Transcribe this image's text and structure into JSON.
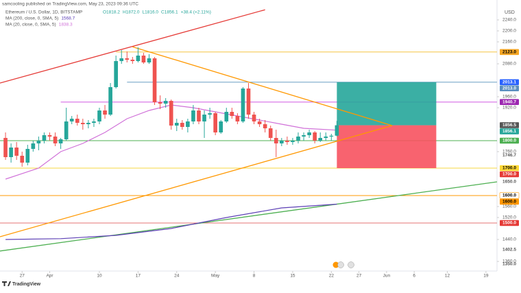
{
  "header": {
    "publisher": "samcooling published on TradingView.com, May 23, 2023 09:36 UTC",
    "logo": "TradingView",
    "currency": "USD"
  },
  "chart_data": {
    "type": "candlestick",
    "title": "Ethereum / U.S. Dollar, 1D, BITSTAMP",
    "ohlc_labels": [
      "O1818.2",
      "H1872.0",
      "L1816.0",
      "C1856.1",
      "+38.4 (+2.11%)"
    ],
    "up_color": "#26a69a",
    "down_color": "#ef5350",
    "x": [
      "2023-03-24",
      "2023-03-25",
      "2023-03-26",
      "2023-03-27",
      "2023-03-28",
      "2023-03-29",
      "2023-03-30",
      "2023-03-31",
      "2023-04-01",
      "2023-04-02",
      "2023-04-03",
      "2023-04-04",
      "2023-04-05",
      "2023-04-06",
      "2023-04-07",
      "2023-04-08",
      "2023-04-09",
      "2023-04-10",
      "2023-04-11",
      "2023-04-12",
      "2023-04-13",
      "2023-04-14",
      "2023-04-15",
      "2023-04-16",
      "2023-04-17",
      "2023-04-18",
      "2023-04-19",
      "2023-04-20",
      "2023-04-21",
      "2023-04-22",
      "2023-04-23",
      "2023-04-24",
      "2023-04-25",
      "2023-04-26",
      "2023-04-27",
      "2023-04-28",
      "2023-04-29",
      "2023-04-30",
      "2023-05-01",
      "2023-05-02",
      "2023-05-03",
      "2023-05-04",
      "2023-05-05",
      "2023-05-06",
      "2023-05-07",
      "2023-05-08",
      "2023-05-09",
      "2023-05-10",
      "2023-05-11",
      "2023-05-12",
      "2023-05-13",
      "2023-05-14",
      "2023-05-15",
      "2023-05-16",
      "2023-05-17",
      "2023-05-18",
      "2023-05-19",
      "2023-05-20",
      "2023-05-21",
      "2023-05-22",
      "2023-05-23"
    ],
    "open": [
      1810,
      1740,
      1775,
      1745,
      1720,
      1770,
      1790,
      1800,
      1820,
      1815,
      1790,
      1805,
      1870,
      1880,
      1865,
      1860,
      1865,
      1870,
      1910,
      1895,
      1995,
      2090,
      2100,
      2095,
      2090,
      2110,
      2085,
      2100,
      1940,
      1935,
      1945,
      1855,
      1865,
      1850,
      1870,
      1910,
      1870,
      1895,
      1900,
      1830,
      1870,
      1905,
      1890,
      1870,
      1990,
      1895,
      1870,
      1860,
      1845,
      1810,
      1790,
      1800,
      1795,
      1800,
      1815,
      1820,
      1830,
      1800,
      1810,
      1815,
      1818.2
    ],
    "high": [
      1830,
      1790,
      1795,
      1760,
      1785,
      1800,
      1815,
      1830,
      1830,
      1830,
      1810,
      1920,
      1890,
      1895,
      1880,
      1875,
      1880,
      1920,
      1930,
      2010,
      2110,
      2130,
      2125,
      2105,
      2140,
      2120,
      2115,
      2105,
      1965,
      1955,
      1950,
      1880,
      1875,
      1880,
      1930,
      1920,
      1910,
      1920,
      1905,
      1875,
      1920,
      1920,
      1900,
      1995,
      2010,
      1905,
      1880,
      1875,
      1855,
      1840,
      1810,
      1815,
      1810,
      1830,
      1830,
      1840,
      1835,
      1830,
      1830,
      1825,
      1872
    ],
    "low": [
      1730,
      1720,
      1730,
      1705,
      1710,
      1760,
      1765,
      1790,
      1800,
      1780,
      1770,
      1800,
      1860,
      1855,
      1840,
      1845,
      1850,
      1860,
      1880,
      1890,
      1990,
      2080,
      2085,
      2080,
      2085,
      2080,
      2080,
      1930,
      1915,
      1920,
      1840,
      1835,
      1840,
      1830,
      1860,
      1860,
      1810,
      1880,
      1820,
      1825,
      1865,
      1880,
      1860,
      1865,
      1880,
      1860,
      1850,
      1830,
      1800,
      1740,
      1780,
      1785,
      1785,
      1790,
      1800,
      1810,
      1790,
      1795,
      1800,
      1800,
      1816
    ],
    "close": [
      1740,
      1775,
      1745,
      1720,
      1770,
      1790,
      1800,
      1820,
      1815,
      1790,
      1805,
      1870,
      1880,
      1865,
      1860,
      1865,
      1870,
      1910,
      1895,
      1995,
      2090,
      2100,
      2095,
      2090,
      2110,
      2085,
      2100,
      1940,
      1935,
      1945,
      1855,
      1865,
      1850,
      1870,
      1910,
      1870,
      1895,
      1900,
      1830,
      1870,
      1905,
      1890,
      1870,
      1990,
      1895,
      1870,
      1860,
      1845,
      1810,
      1790,
      1800,
      1795,
      1800,
      1815,
      1820,
      1830,
      1800,
      1810,
      1815,
      1818,
      1856.1
    ],
    "moving_averages": [
      {
        "name": "MA (200, close, 0, SMA, 5)",
        "value_label": "1568.7",
        "color": "#5c3fb5",
        "x": [
          "2023-03-24",
          "2023-04-03",
          "2023-04-13",
          "2023-04-23",
          "2023-05-03",
          "2023-05-13",
          "2023-05-23"
        ],
        "values": [
          1440,
          1443,
          1455,
          1480,
          1520,
          1555,
          1568.7
        ]
      },
      {
        "name": "MA (20, close, 0, SMA, 5)",
        "value_label": "1838.3",
        "color": "#d070d8",
        "x": [
          "2023-03-24",
          "2023-03-30",
          "2023-04-03",
          "2023-04-07",
          "2023-04-11",
          "2023-04-15",
          "2023-04-19",
          "2023-04-23",
          "2023-04-27",
          "2023-05-01",
          "2023-05-05",
          "2023-05-09",
          "2023-05-13",
          "2023-05-17",
          "2023-05-23"
        ],
        "values": [
          1660,
          1700,
          1760,
          1790,
          1830,
          1880,
          1910,
          1930,
          1920,
          1905,
          1890,
          1875,
          1860,
          1845,
          1838.3
        ]
      }
    ],
    "trend_lines": [
      {
        "color": "#e53935",
        "x": [
          "2023-03-23",
          "2023-05-10"
        ],
        "values": [
          2010,
          2277
        ]
      },
      {
        "color": "#ff9800",
        "x": [
          "2023-04-16",
          "2023-06-02"
        ],
        "values": [
          2142,
          1855
        ]
      },
      {
        "color": "#ff9800",
        "x": [
          "2023-03-23",
          "2023-06-02"
        ],
        "values": [
          1450,
          1855
        ]
      },
      {
        "color": "#4caf50",
        "x": [
          "2023-03-23",
          "2023-06-21"
        ],
        "values": [
          1398,
          1650
        ]
      }
    ],
    "levels": [
      {
        "value": 2123,
        "color": "#f5c542",
        "from": "2023-04-13"
      },
      {
        "value": 2013,
        "color": "#6a9fc4",
        "from": "2023-04-15"
      },
      {
        "value": 1940.7,
        "color": "#d05ce3",
        "from": "2023-04-03"
      },
      {
        "value": 1800,
        "color": "#4caf50",
        "from": "2023-03-23"
      },
      {
        "value": 1700,
        "color": "#f5d742",
        "from": "2023-03-23"
      },
      {
        "value": 1600,
        "color": "#ff9800",
        "from": "2023-03-23"
      },
      {
        "value": 1500,
        "color": "#e57373",
        "from": "2023-03-23"
      }
    ],
    "position": {
      "entry": 1856.1,
      "target": 2013,
      "stop": 1700,
      "from": "2023-05-23",
      "to": "2023-06-10",
      "profit_color": "#26a69a",
      "loss_color": "#f7525f"
    },
    "price_tags": [
      {
        "value": 2123,
        "label": "2123.0",
        "color": "#f5a623",
        "text_color": "#000000"
      },
      {
        "value": 2013.1,
        "label": "2013.1",
        "color": "#2962ff",
        "text_color": "#ffffff"
      },
      {
        "value": 2013,
        "label": "2013.0",
        "color": "#5b8fbf",
        "text_color": "#ffffff"
      },
      {
        "value": 1940.7,
        "label": "1940.7",
        "color": "#9c27b0",
        "text_color": "#ffffff"
      },
      {
        "value": 1856.5,
        "label": "1856.5",
        "color": "#555555",
        "text_color": "#ffffff"
      },
      {
        "value": 1856.1,
        "label": "1856.1",
        "color": "#26a69a",
        "text_color": "#ffffff"
      },
      {
        "value": 1800,
        "label": "1800.0",
        "color": "#4caf50",
        "text_color": "#ffffff"
      },
      {
        "value": 1746.7,
        "label": "1746.7"
      },
      {
        "value": 1700,
        "label": "1700.0",
        "color": "#fdd835",
        "text_color": "#000000"
      },
      {
        "value": 1700,
        "label": "1700.0",
        "color": "#e53935",
        "text_color": "#ffffff"
      },
      {
        "value": 1650,
        "label": "1650.0"
      },
      {
        "value": 1600,
        "label": "1600.0",
        "color": "#ffffff",
        "text_color": "#000000"
      },
      {
        "value": 1600,
        "label": "1600.0",
        "color": "#ff9800",
        "text_color": "#000000"
      },
      {
        "value": 1500,
        "label": "1500.0",
        "color": "#e53935",
        "text_color": "#ffffff"
      },
      {
        "value": 1402.5,
        "label": "1402.5"
      },
      {
        "value": 1350,
        "label": "1350.0"
      }
    ],
    "ylim": [
      1325,
      2312.5
    ],
    "yticks": [
      {
        "value": 2240,
        "label": "2240.0"
      },
      {
        "value": 2200,
        "label": "2200.0"
      },
      {
        "value": 2160,
        "label": "2160.0"
      },
      {
        "value": 2080,
        "label": "2080.0"
      },
      {
        "value": 1960,
        "label": "1960.0"
      },
      {
        "value": 1920,
        "label": "1920.0"
      },
      {
        "value": 1760,
        "label": "1760.0"
      },
      {
        "value": 1560,
        "label": "1560.0"
      },
      {
        "value": 1520,
        "label": "1520.0"
      },
      {
        "value": 1440,
        "label": "1440.0"
      },
      {
        "value": 1360,
        "label": "1360.0"
      }
    ],
    "xlim": [
      "2023-03-23",
      "2023-06-21"
    ],
    "xticks": [
      {
        "value": "2023-03-27",
        "label": "27"
      },
      {
        "value": "2023-04-01",
        "label": "Apr"
      },
      {
        "value": "2023-04-10",
        "label": "10"
      },
      {
        "value": "2023-04-17",
        "label": "17"
      },
      {
        "value": "2023-04-24",
        "label": "24"
      },
      {
        "value": "2023-05-01",
        "label": "May"
      },
      {
        "value": "2023-05-08",
        "label": "8"
      },
      {
        "value": "2023-05-15",
        "label": "15"
      },
      {
        "value": "2023-05-22",
        "label": "22"
      },
      {
        "value": "2023-05-27",
        "label": "27"
      },
      {
        "value": "2023-06-01",
        "label": "Jun"
      },
      {
        "value": "2023-06-06",
        "label": "6"
      },
      {
        "value": "2023-06-12",
        "label": "12"
      },
      {
        "value": "2023-06-19",
        "label": "19"
      }
    ]
  }
}
